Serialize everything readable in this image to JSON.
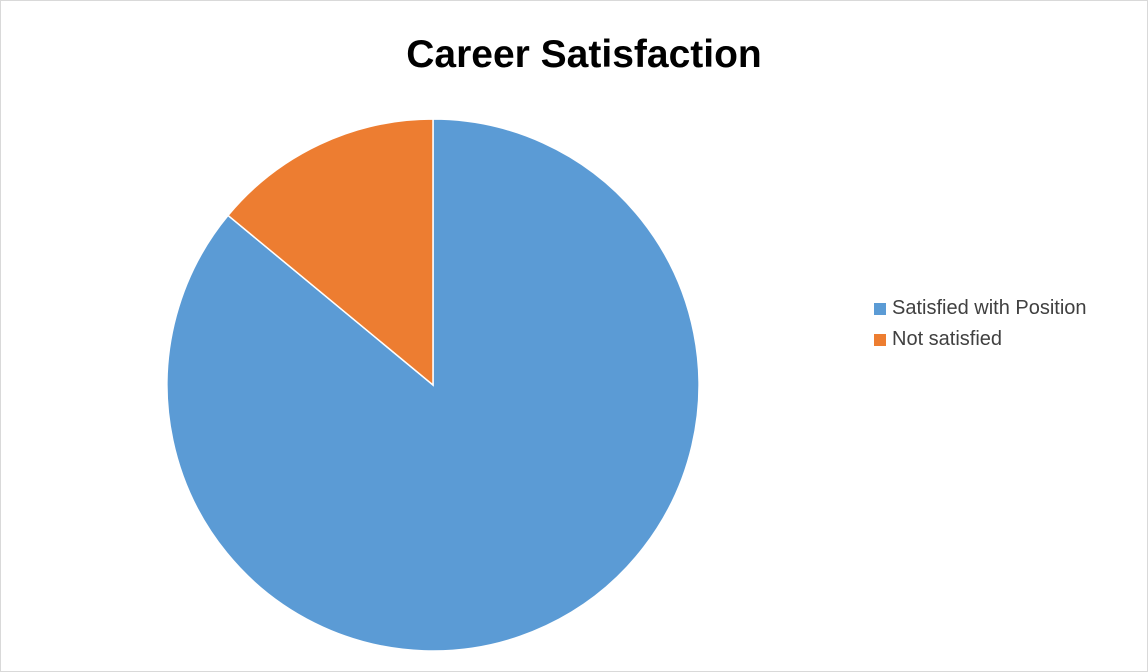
{
  "chart_data": {
    "type": "pie",
    "title": "Career Satisfaction",
    "categories": [
      "Satisfied with Position",
      "Not satisfied"
    ],
    "values": [
      86,
      14
    ],
    "colors": [
      "#5b9bd5",
      "#ed7d31"
    ],
    "start_angle": "12 o'clock",
    "direction": "clockwise",
    "legend_position": "right"
  }
}
